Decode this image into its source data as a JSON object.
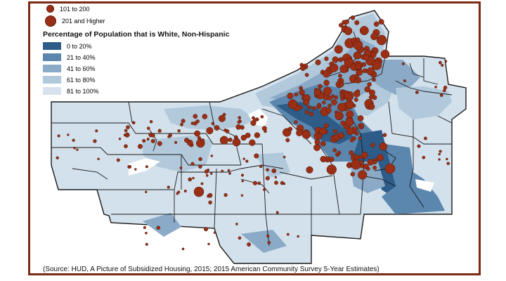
{
  "legend": {
    "circles": [
      {
        "label": "101 to 200",
        "size": "medium"
      },
      {
        "label": "201 and Higher",
        "size": "large"
      }
    ],
    "title": "Percentage of Population that is White, Non-Hispanic",
    "shades": [
      {
        "label": "0 to 20%",
        "color": "#2e5c88"
      },
      {
        "label": "21 to 40%",
        "color": "#5b86ad"
      },
      {
        "label": "41 to 60%",
        "color": "#8aaac7"
      },
      {
        "label": "61 to 80%",
        "color": "#b2c9dc"
      },
      {
        "label": "81 to 100%",
        "color": "#d6e3ee"
      }
    ]
  },
  "colors": {
    "frame": "#7a2a14",
    "marker": "#9a2f16",
    "boundary": "#1a1a1a"
  },
  "source_text": "(Source: HUD, A Picture of Subsidized Housing, 2015; 2015 American Community Survey 5-Year Estimates)"
}
